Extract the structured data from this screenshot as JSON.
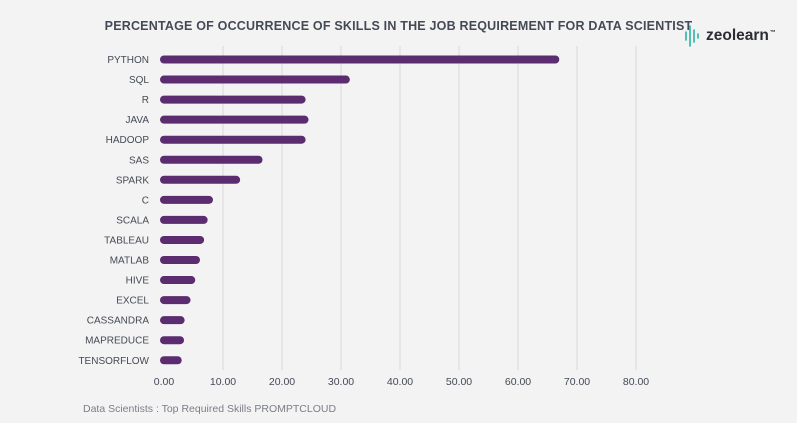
{
  "colors": {
    "background": "#f3f3f4",
    "bar": "#5b2c6f",
    "grid": "#d9d9dc",
    "text": "#444a55",
    "logo_accent": "#2bb3a3"
  },
  "logo": {
    "text": "zeolearn",
    "tm": "™",
    "icon": "audio-wave-logo-icon"
  },
  "footer_note": "Data Scientists : Top Required Skills PROMPTCLOUD",
  "chart_data": {
    "type": "bar",
    "orientation": "horizontal",
    "title": "PERCENTAGE OF OCCURRENCE OF SKILLS IN THE JOB REQUIREMENT FOR DATA SCIENTIST",
    "xlabel": "",
    "ylabel": "",
    "categories": [
      "PYTHON",
      "SQL",
      "R",
      "JAVA",
      "HADOOP",
      "SAS",
      "SPARK",
      "C",
      "SCALA",
      "TABLEAU",
      "MATLAB",
      "HIVE",
      "EXCEL",
      "CASSANDRA",
      "MAPREDUCE",
      "TENSORFLOW"
    ],
    "values": [
      67.0,
      31.5,
      24.0,
      24.5,
      24.0,
      16.7,
      12.9,
      8.3,
      7.4,
      6.8,
      6.1,
      5.3,
      4.5,
      3.5,
      3.4,
      3.0
    ],
    "xlim": [
      0,
      80
    ],
    "xticks": [
      0,
      10,
      20,
      30,
      40,
      50,
      60,
      70,
      80
    ],
    "xtick_labels": [
      "0.00",
      "10.00",
      "20.00",
      "30.00",
      "40.00",
      "50.00",
      "60.00",
      "70.00",
      "80.00"
    ],
    "grid": true,
    "legend": "none"
  }
}
